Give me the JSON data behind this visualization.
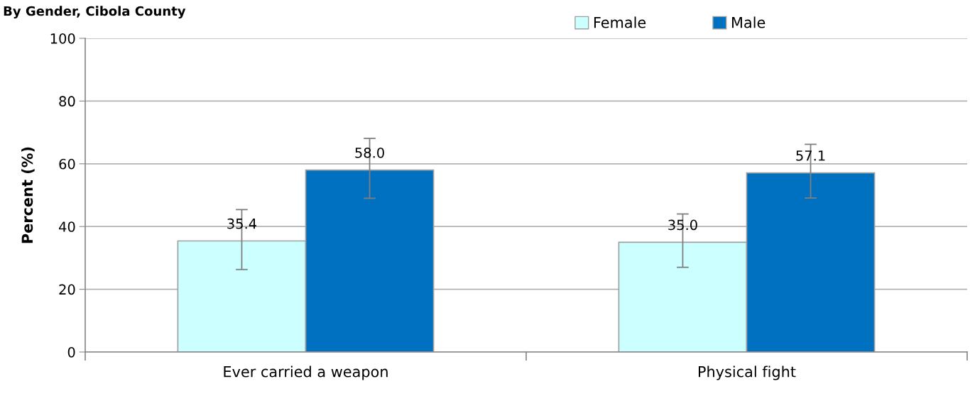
{
  "chart_data": {
    "type": "bar",
    "title": "By Gender, Cibola County",
    "ylabel": "Percent (%)",
    "categories": [
      "Ever carried a weapon",
      "Physical fight"
    ],
    "series": [
      {
        "name": "Female",
        "color": "#ccffff",
        "values": [
          35.4,
          35.0
        ],
        "value_labels": [
          "35.4",
          "35.0"
        ],
        "errors": [
          [
            26.3,
            45.4
          ],
          [
            27.0,
            44.0
          ]
        ]
      },
      {
        "name": "Male",
        "color": "#0070c0",
        "values": [
          58.0,
          57.1
        ],
        "value_labels": [
          "58.0",
          "57.1"
        ],
        "errors": [
          [
            49.0,
            68.1
          ],
          [
            49.1,
            66.2
          ]
        ]
      }
    ],
    "ylim": [
      0,
      100
    ],
    "yticks": [
      0,
      20,
      40,
      60,
      80,
      100
    ],
    "grid": "y",
    "legend": "top right"
  }
}
